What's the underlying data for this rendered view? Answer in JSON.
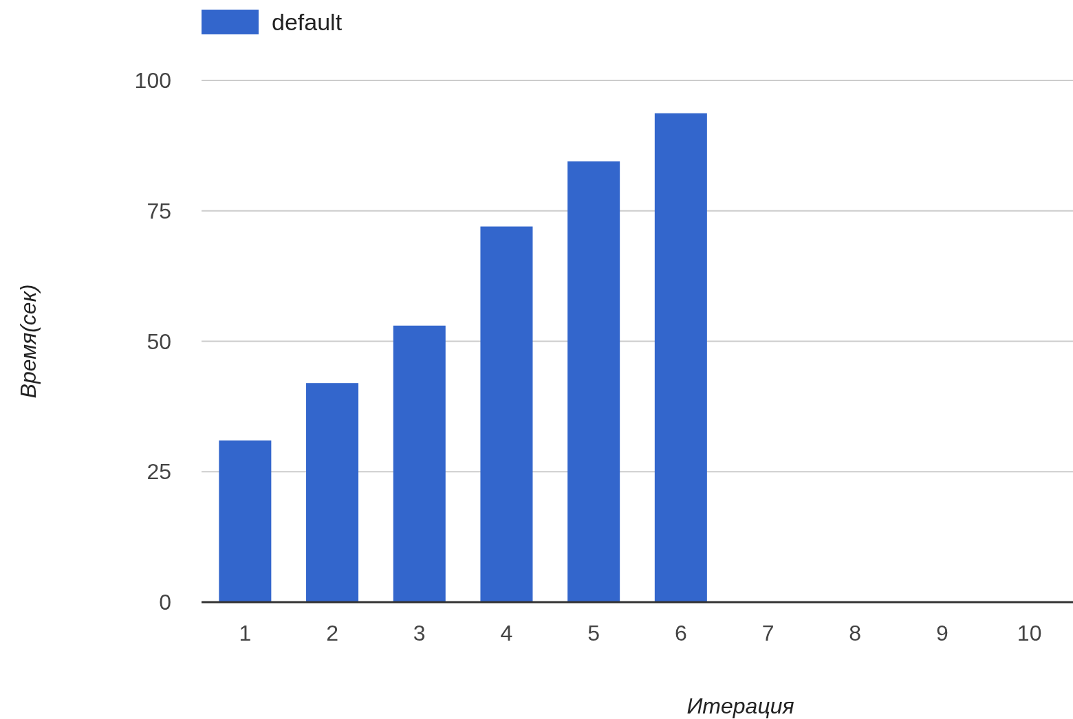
{
  "chart_data": {
    "type": "bar",
    "xlabel": "Итерация",
    "ylabel": "Время(сек)",
    "categories": [
      "1",
      "2",
      "3",
      "4",
      "5",
      "6",
      "7",
      "8",
      "9",
      "10"
    ],
    "series": [
      {
        "name": "default",
        "color": "#3366cc",
        "values": [
          31,
          42,
          53,
          72,
          84.5,
          93.7,
          null,
          null,
          null,
          null
        ]
      }
    ],
    "ylim": [
      0,
      100
    ],
    "yticks": [
      0,
      25,
      50,
      75,
      100
    ],
    "grid": "y",
    "legend": "top left"
  }
}
